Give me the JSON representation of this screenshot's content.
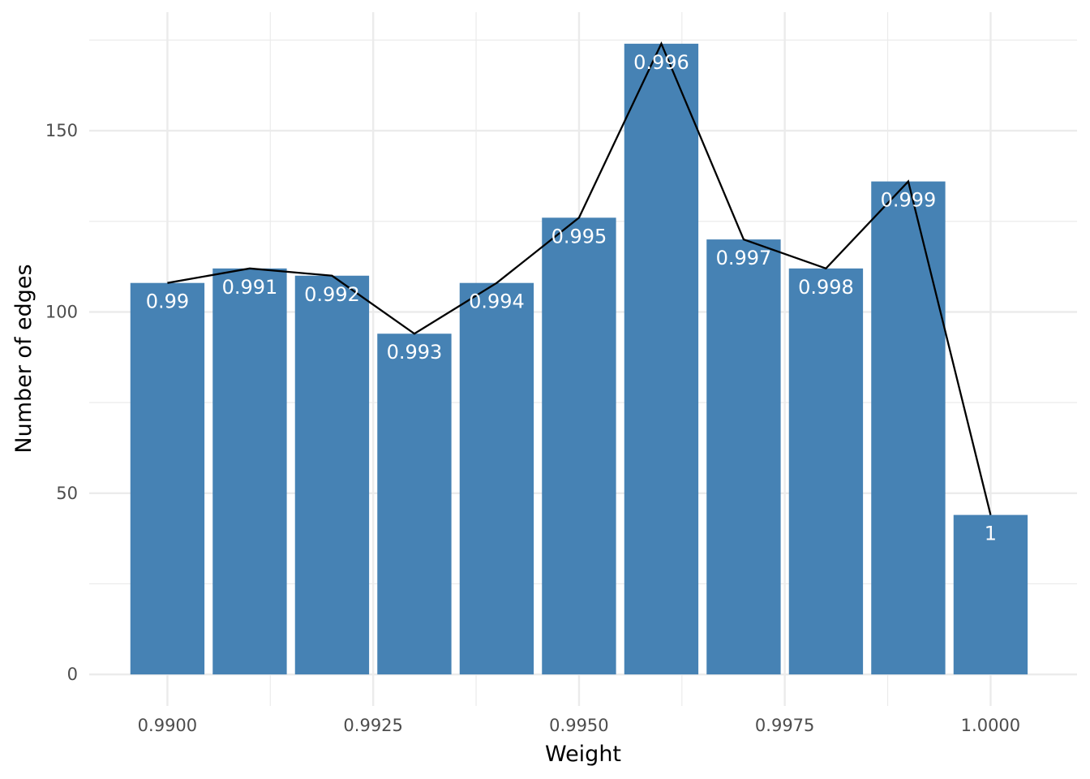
{
  "chart_data": {
    "type": "bar",
    "xlabel": "Weight",
    "ylabel": "Number of edges",
    "x": [
      0.99,
      0.991,
      0.992,
      0.993,
      0.994,
      0.995,
      0.996,
      0.997,
      0.998,
      0.999,
      1.0
    ],
    "values": [
      108,
      112,
      110,
      94,
      108,
      126,
      174,
      120,
      112,
      136,
      44
    ],
    "bar_labels": [
      "0.99",
      "0.991",
      "0.992",
      "0.993",
      "0.994",
      "0.995",
      "0.996",
      "0.997",
      "0.998",
      "0.999",
      "1"
    ],
    "xlim": [
      0.98905,
      1.00105
    ],
    "ylim": [
      -8.7,
      182.7
    ],
    "x_ticks": [
      0.99,
      0.9925,
      0.995,
      0.9975,
      1.0
    ],
    "x_tick_labels": [
      "0.9900",
      "0.9925",
      "0.9950",
      "0.9975",
      "1.0000"
    ],
    "y_ticks": [
      0,
      50,
      100,
      150
    ],
    "y_tick_labels": [
      "0",
      "50",
      "100",
      "150"
    ],
    "bar_color": "#4682b4",
    "line_color": "#000000",
    "overlay": "line connecting bar tops",
    "grid": true,
    "legend": "none"
  }
}
